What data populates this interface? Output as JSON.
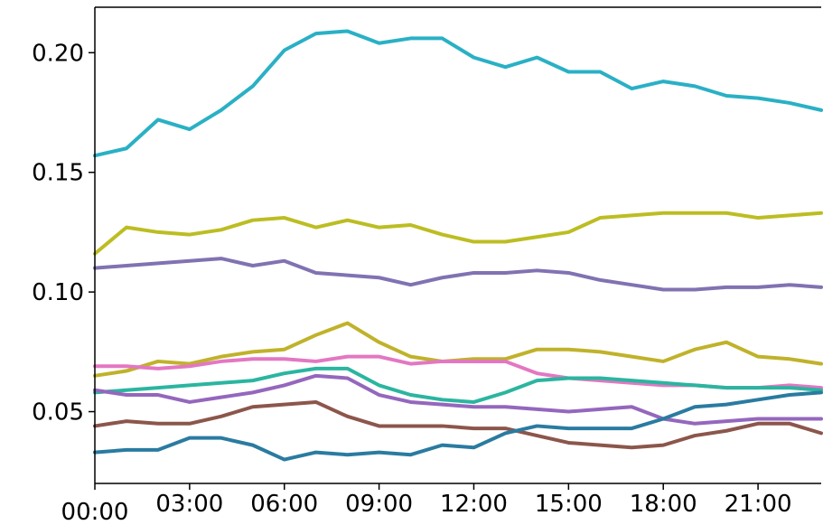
{
  "chart_data": {
    "type": "line",
    "title": "",
    "xlabel": "",
    "ylabel": "",
    "x": [
      "00:00",
      "01:00",
      "02:00",
      "03:00",
      "04:00",
      "05:00",
      "06:00",
      "07:00",
      "08:00",
      "09:00",
      "10:00",
      "11:00",
      "12:00",
      "13:00",
      "14:00",
      "15:00",
      "16:00",
      "17:00",
      "18:00",
      "19:00",
      "20:00",
      "21:00",
      "22:00",
      "23:00"
    ],
    "x_ticks": [
      "00:00",
      "03:00",
      "06:00",
      "09:00",
      "12:00",
      "15:00",
      "18:00",
      "21:00"
    ],
    "y_ticks": [
      0.05,
      0.1,
      0.15,
      0.2
    ],
    "y_tick_labels": [
      "0.05",
      "0.10",
      "0.15",
      "0.20"
    ],
    "xlim": [
      0,
      23
    ],
    "ylim": [
      0.02,
      0.219
    ],
    "grid": false,
    "legend": "none",
    "series": [
      {
        "color": "#2ab0c5",
        "values": [
          0.157,
          0.16,
          0.172,
          0.168,
          0.176,
          0.186,
          0.201,
          0.208,
          0.209,
          0.204,
          0.206,
          0.206,
          0.198,
          0.194,
          0.198,
          0.192,
          0.192,
          0.185,
          0.188,
          0.186,
          0.182,
          0.181,
          0.179,
          0.176
        ]
      },
      {
        "color": "#bcbd22",
        "values": [
          0.116,
          0.127,
          0.125,
          0.124,
          0.126,
          0.13,
          0.131,
          0.127,
          0.13,
          0.127,
          0.128,
          0.124,
          0.121,
          0.121,
          0.123,
          0.125,
          0.131,
          0.132,
          0.133,
          0.133,
          0.133,
          0.131,
          0.132,
          0.133
        ]
      },
      {
        "color": "#8172b2",
        "values": [
          0.11,
          0.111,
          0.112,
          0.113,
          0.114,
          0.111,
          0.113,
          0.108,
          0.107,
          0.106,
          0.103,
          0.106,
          0.108,
          0.108,
          0.109,
          0.108,
          0.105,
          0.103,
          0.101,
          0.101,
          0.102,
          0.102,
          0.103,
          0.102
        ]
      },
      {
        "color": "#c0b22a",
        "values": [
          0.065,
          0.067,
          0.071,
          0.07,
          0.073,
          0.075,
          0.076,
          0.082,
          0.087,
          0.079,
          0.073,
          0.071,
          0.072,
          0.072,
          0.076,
          0.076,
          0.075,
          0.073,
          0.071,
          0.076,
          0.079,
          0.073,
          0.072,
          0.07
        ]
      },
      {
        "color": "#e377c2",
        "values": [
          0.069,
          0.069,
          0.068,
          0.069,
          0.071,
          0.072,
          0.072,
          0.071,
          0.073,
          0.073,
          0.07,
          0.071,
          0.071,
          0.071,
          0.066,
          0.064,
          0.063,
          0.062,
          0.061,
          0.061,
          0.06,
          0.06,
          0.061,
          0.06
        ]
      },
      {
        "color": "#2bb5a0",
        "values": [
          0.058,
          0.059,
          0.06,
          0.061,
          0.062,
          0.063,
          0.066,
          0.068,
          0.068,
          0.061,
          0.057,
          0.055,
          0.054,
          0.058,
          0.063,
          0.064,
          0.064,
          0.063,
          0.062,
          0.061,
          0.06,
          0.06,
          0.06,
          0.059
        ]
      },
      {
        "color": "#9467bd",
        "values": [
          0.059,
          0.057,
          0.057,
          0.054,
          0.056,
          0.058,
          0.061,
          0.065,
          0.064,
          0.057,
          0.054,
          0.053,
          0.052,
          0.052,
          0.051,
          0.05,
          0.051,
          0.052,
          0.047,
          0.045,
          0.046,
          0.047,
          0.047,
          0.047
        ]
      },
      {
        "color": "#8c564b",
        "values": [
          0.044,
          0.046,
          0.045,
          0.045,
          0.048,
          0.052,
          0.053,
          0.054,
          0.048,
          0.044,
          0.044,
          0.044,
          0.043,
          0.043,
          0.04,
          0.037,
          0.036,
          0.035,
          0.036,
          0.04,
          0.042,
          0.045,
          0.045,
          0.041
        ]
      },
      {
        "color": "#2a7ba0",
        "values": [
          0.033,
          0.034,
          0.034,
          0.039,
          0.039,
          0.036,
          0.03,
          0.033,
          0.032,
          0.033,
          0.032,
          0.036,
          0.035,
          0.041,
          0.044,
          0.043,
          0.043,
          0.043,
          0.047,
          0.052,
          0.053,
          0.055,
          0.057,
          0.058
        ]
      }
    ]
  }
}
